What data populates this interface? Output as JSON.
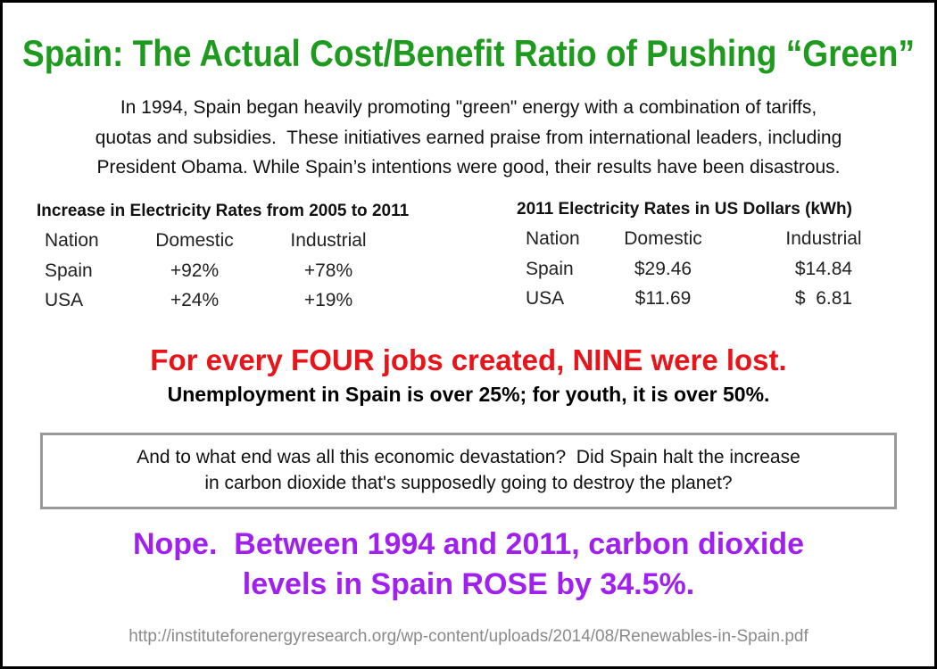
{
  "title": "Spain: The Actual Cost/Benefit Ratio of Pushing “Green”",
  "intro": [
    "In 1994, Spain began heavily promoting \"green\" energy with a combination of tariffs,",
    "quotas and subsidies.  These initiatives earned praise from international leaders, including",
    "President Obama. While Spain’s intentions were good, their results have been disastrous."
  ],
  "tables": [
    {
      "title": "Increase in Electricity Rates from 2005 to 2011",
      "columns": [
        "Nation",
        "Domestic",
        "Industrial"
      ],
      "rows": [
        [
          "Spain",
          "+92%",
          "+78%"
        ],
        [
          "USA",
          "+24%",
          "+19%"
        ]
      ]
    },
    {
      "title": "2011 Electricity Rates in US Dollars (kWh)",
      "columns": [
        "Nation",
        "Domestic",
        "Industrial"
      ],
      "rows": [
        [
          "Spain",
          "$29.46",
          "$14.84"
        ],
        [
          "USA",
          "$11.69",
          "$  6.81"
        ]
      ]
    }
  ],
  "headline": "For every FOUR jobs created, NINE were lost.",
  "subheadline": "Unemployment in Spain is over 25%; for youth, it is over 50%.",
  "question": [
    "And to what end was all this economic devastation?  Did Spain halt the increase",
    "in carbon dioxide that's supposedly going to destroy the planet?"
  ],
  "answer": [
    "Nope.  Between 1994 and 2011, carbon dioxide",
    "levels in Spain ROSE by 34.5%."
  ],
  "source": "http://instituteforenergyresearch.org/wp-content/uploads/2014/08/Renewables-in-Spain.pdf"
}
